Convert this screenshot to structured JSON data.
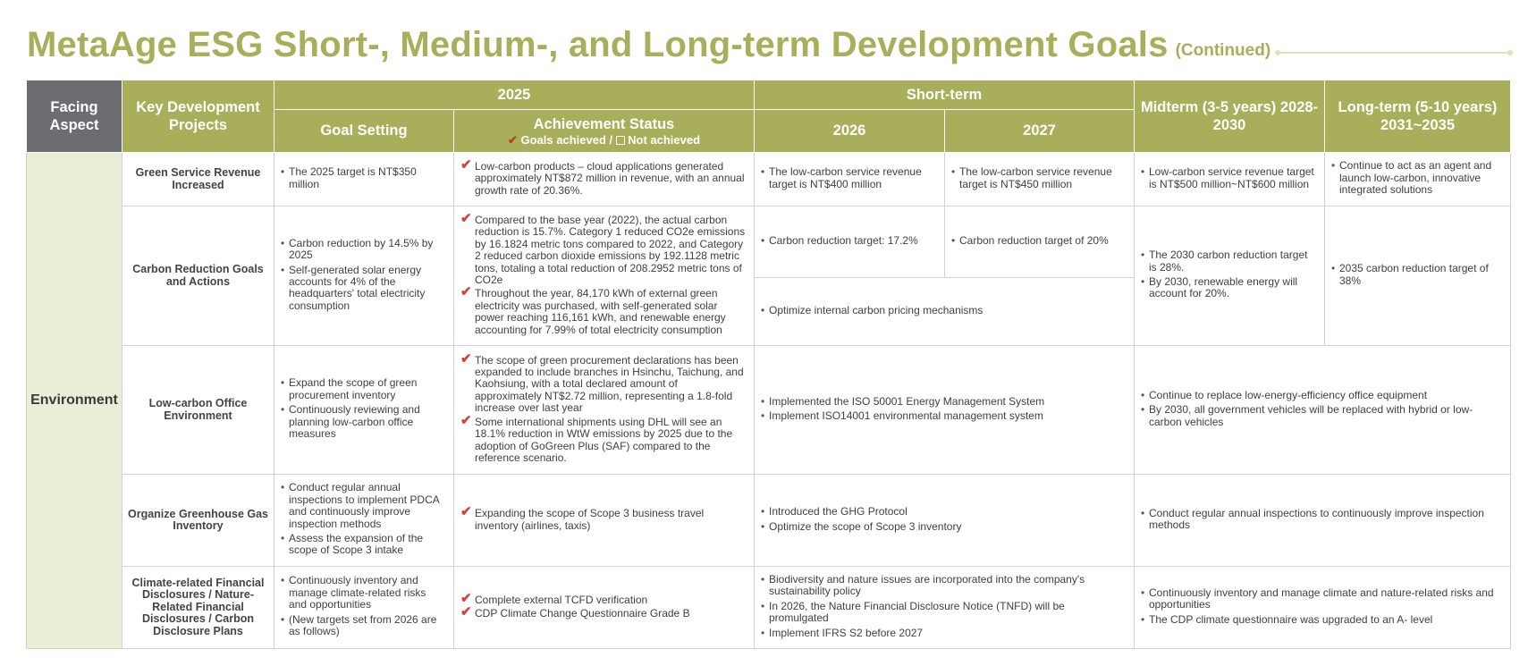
{
  "title": "MetaAge ESG Short-, Medium-, and Long-term Development Goals",
  "title_suffix": "(Continued)",
  "colors": {
    "accent": "#a9ae5a",
    "header_dark": "#6c6d70",
    "aspect_bg": "#ebedd7",
    "check": "#d0423a"
  },
  "icons": {
    "check": "check-icon",
    "box": "empty-box-icon"
  },
  "headers": {
    "facing_aspect": "Facing Aspect",
    "key_projects": "Key Development Projects",
    "year_2025": "2025",
    "short_term": "Short-term",
    "midterm": "Midterm (3-5 years) 2028-2030",
    "longterm": "Long-term (5-10 years) 2031~2035",
    "goal_setting": "Goal Setting",
    "achievement_status": "Achievement Status",
    "legend_achieved": "Goals achieved /",
    "legend_not_achieved": "Not achieved",
    "y2026": "2026",
    "y2027": "2027"
  },
  "aspect": "Environment",
  "rows": [
    {
      "project": "Green Service Revenue Increased",
      "goal_setting": [
        "The 2025 target is NT$350 million"
      ],
      "achievement": [
        "Low-carbon products – cloud applications generated approximately NT$872 million in revenue, with an annual growth rate of 20.36%."
      ],
      "y2026": [
        "The low-carbon service revenue target is NT$400 million"
      ],
      "y2027": [
        "The low-carbon service revenue target is NT$450 million"
      ],
      "midterm": [
        "Low-carbon service revenue target is NT$500 million~NT$600 million"
      ],
      "longterm": [
        "Continue to act as an agent and launch low-carbon, innovative integrated solutions"
      ]
    },
    {
      "project": "Carbon Reduction Goals and Actions",
      "goal_setting": [
        "Carbon reduction by 14.5% by 2025",
        "Self-generated solar energy accounts for 4% of the headquarters' total electricity consumption"
      ],
      "achievement": [
        "Compared to the base year (2022), the actual carbon reduction is 15.7%. Category 1 reduced CO2e emissions by 16.1824 metric tons compared to 2022, and Category 2 reduced carbon dioxide emissions by 192.1128 metric tons, totaling a total reduction of 208.2952 metric tons of CO2e",
        "Throughout the year, 84,170 kWh of external green electricity was purchased, with self-generated solar power reaching 116,161 kWh, and renewable energy accounting for 7.99% of total electricity consumption"
      ],
      "y2026": [
        "Carbon reduction target: 17.2%"
      ],
      "y2027": [
        "Carbon reduction target of 20%"
      ],
      "short_term_shared": [
        "Optimize internal carbon pricing mechanisms"
      ],
      "midterm": [
        "The 2030 carbon reduction target is 28%.",
        "By 2030, renewable energy will account for 20%."
      ],
      "longterm": [
        "2035 carbon reduction target of 38%"
      ]
    },
    {
      "project": "Low-carbon Office Environment",
      "goal_setting": [
        "Expand the scope of green procurement inventory",
        "Continuously reviewing and planning low-carbon office measures"
      ],
      "achievement": [
        "The scope of green procurement declarations has been expanded to include branches in Hsinchu, Taichung, and Kaohsiung, with a total declared amount of approximately NT$2.72 million, representing a 1.8-fold increase over last year",
        "Some international shipments using DHL will see an 18.1% reduction in WtW emissions by 2025 due to the adoption of GoGreen Plus (SAF) compared to the reference scenario."
      ],
      "short_term": [
        "Implemented the ISO 50001 Energy Management System",
        "Implement ISO14001 environmental management system"
      ],
      "mid_long": [
        "Continue to replace low-energy-efficiency office equipment",
        "By 2030, all government vehicles will be replaced with hybrid or low-carbon vehicles"
      ]
    },
    {
      "project": "Organize Greenhouse Gas Inventory",
      "goal_setting": [
        "Conduct regular annual inspections to implement PDCA and continuously improve inspection methods",
        "Assess the expansion of the scope of Scope 3 intake"
      ],
      "achievement": [
        "Expanding the scope of Scope 3 business travel inventory (airlines, taxis)"
      ],
      "short_term": [
        "Introduced the GHG Protocol",
        "Optimize the scope of Scope 3 inventory"
      ],
      "mid_long": [
        "Conduct regular annual inspections to continuously improve inspection methods"
      ]
    },
    {
      "project": "Climate-related Financial Disclosures / Nature-Related Financial Disclosures / Carbon Disclosure Plans",
      "goal_setting": [
        "Continuously inventory and manage climate-related risks and opportunities",
        "(New targets set from 2026 are as follows)"
      ],
      "achievement": [
        "Complete external TCFD verification",
        "CDP Climate Change Questionnaire Grade B"
      ],
      "short_term": [
        "Biodiversity and nature issues are incorporated into the company's sustainability policy",
        "In 2026, the Nature Financial Disclosure Notice (TNFD) will be promulgated",
        "Implement IFRS S2 before 2027"
      ],
      "mid_long": [
        "Continuously inventory and manage climate and nature-related risks and opportunities",
        "The CDP climate questionnaire was upgraded to an A- level"
      ]
    }
  ]
}
